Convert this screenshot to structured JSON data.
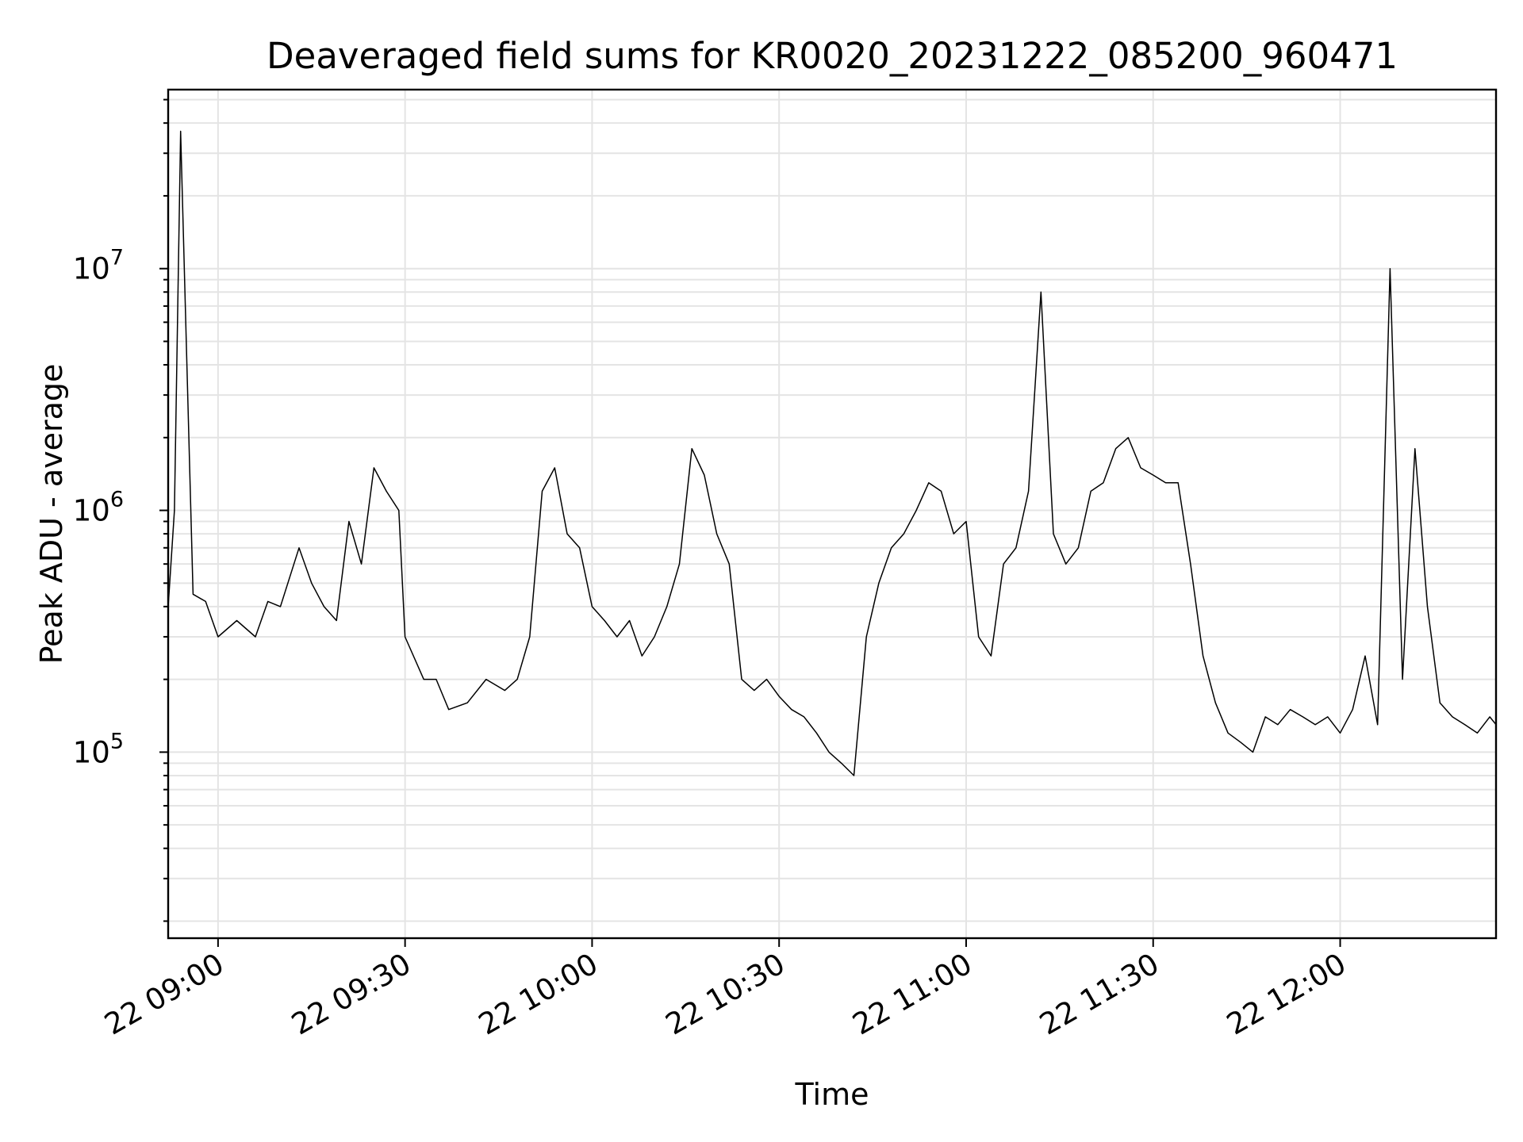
{
  "chart_data": {
    "type": "line",
    "title": "Deaveraged field sums for KR0020_20231222_085200_960471",
    "xlabel": "Time",
    "ylabel": "Peak ADU - average",
    "x_range": [
      "2023-12-22T08:52:00",
      "2023-12-22T12:25:00"
    ],
    "y_range": [
      17000,
      55000000
    ],
    "y_scale": "log",
    "grid": true,
    "line_color": "#000000",
    "x_ticks": [
      {
        "label": "22 09:00",
        "value": "2023-12-22T09:00:00"
      },
      {
        "label": "22 09:30",
        "value": "2023-12-22T09:30:00"
      },
      {
        "label": "22 10:00",
        "value": "2023-12-22T10:00:00"
      },
      {
        "label": "22 10:30",
        "value": "2023-12-22T10:30:00"
      },
      {
        "label": "22 11:00",
        "value": "2023-12-22T11:00:00"
      },
      {
        "label": "22 11:30",
        "value": "2023-12-22T11:30:00"
      },
      {
        "label": "22 12:00",
        "value": "2023-12-22T12:00:00"
      }
    ],
    "y_ticks": [
      {
        "base": "10",
        "exp": "5",
        "value": 100000
      },
      {
        "base": "10",
        "exp": "6",
        "value": 1000000
      },
      {
        "base": "10",
        "exp": "7",
        "value": 10000000
      }
    ],
    "series": [
      {
        "x": [
          "2023-12-22T08:52:00",
          "2023-12-22T08:53:00",
          "2023-12-22T08:54:00",
          "2023-12-22T08:56:00",
          "2023-12-22T08:58:00",
          "2023-12-22T09:00:00",
          "2023-12-22T09:03:00",
          "2023-12-22T09:06:00",
          "2023-12-22T09:08:00",
          "2023-12-22T09:10:00",
          "2023-12-22T09:13:00",
          "2023-12-22T09:15:00",
          "2023-12-22T09:17:00",
          "2023-12-22T09:19:00",
          "2023-12-22T09:21:00",
          "2023-12-22T09:23:00",
          "2023-12-22T09:25:00",
          "2023-12-22T09:27:00",
          "2023-12-22T09:29:00",
          "2023-12-22T09:30:00",
          "2023-12-22T09:33:00",
          "2023-12-22T09:35:00",
          "2023-12-22T09:37:00",
          "2023-12-22T09:40:00",
          "2023-12-22T09:43:00",
          "2023-12-22T09:46:00",
          "2023-12-22T09:48:00",
          "2023-12-22T09:50:00",
          "2023-12-22T09:52:00",
          "2023-12-22T09:54:00",
          "2023-12-22T09:56:00",
          "2023-12-22T09:58:00",
          "2023-12-22T10:00:00",
          "2023-12-22T10:02:00",
          "2023-12-22T10:04:00",
          "2023-12-22T10:06:00",
          "2023-12-22T10:08:00",
          "2023-12-22T10:10:00",
          "2023-12-22T10:12:00",
          "2023-12-22T10:14:00",
          "2023-12-22T10:16:00",
          "2023-12-22T10:18:00",
          "2023-12-22T10:20:00",
          "2023-12-22T10:22:00",
          "2023-12-22T10:24:00",
          "2023-12-22T10:26:00",
          "2023-12-22T10:28:00",
          "2023-12-22T10:30:00",
          "2023-12-22T10:32:00",
          "2023-12-22T10:34:00",
          "2023-12-22T10:36:00",
          "2023-12-22T10:38:00",
          "2023-12-22T10:40:00",
          "2023-12-22T10:42:00",
          "2023-12-22T10:44:00",
          "2023-12-22T10:46:00",
          "2023-12-22T10:48:00",
          "2023-12-22T10:50:00",
          "2023-12-22T10:52:00",
          "2023-12-22T10:54:00",
          "2023-12-22T10:56:00",
          "2023-12-22T10:58:00",
          "2023-12-22T11:00:00",
          "2023-12-22T11:02:00",
          "2023-12-22T11:04:00",
          "2023-12-22T11:06:00",
          "2023-12-22T11:08:00",
          "2023-12-22T11:10:00",
          "2023-12-22T11:12:00",
          "2023-12-22T11:14:00",
          "2023-12-22T11:16:00",
          "2023-12-22T11:18:00",
          "2023-12-22T11:20:00",
          "2023-12-22T11:22:00",
          "2023-12-22T11:24:00",
          "2023-12-22T11:26:00",
          "2023-12-22T11:28:00",
          "2023-12-22T11:30:00",
          "2023-12-22T11:32:00",
          "2023-12-22T11:34:00",
          "2023-12-22T11:36:00",
          "2023-12-22T11:38:00",
          "2023-12-22T11:40:00",
          "2023-12-22T11:42:00",
          "2023-12-22T11:44:00",
          "2023-12-22T11:46:00",
          "2023-12-22T11:48:00",
          "2023-12-22T11:50:00",
          "2023-12-22T11:52:00",
          "2023-12-22T11:54:00",
          "2023-12-22T11:56:00",
          "2023-12-22T11:58:00",
          "2023-12-22T12:00:00",
          "2023-12-22T12:02:00",
          "2023-12-22T12:04:00",
          "2023-12-22T12:06:00",
          "2023-12-22T12:08:00",
          "2023-12-22T12:10:00",
          "2023-12-22T12:12:00",
          "2023-12-22T12:14:00",
          "2023-12-22T12:16:00",
          "2023-12-22T12:18:00",
          "2023-12-22T12:20:00",
          "2023-12-22T12:22:00",
          "2023-12-22T12:24:00",
          "2023-12-22T12:25:00"
        ],
        "values": [
          400000,
          1000000,
          37000000,
          450000,
          420000,
          300000,
          350000,
          300000,
          420000,
          400000,
          700000,
          500000,
          400000,
          350000,
          900000,
          600000,
          1500000,
          1200000,
          1000000,
          300000,
          200000,
          200000,
          150000,
          160000,
          200000,
          180000,
          200000,
          300000,
          1200000,
          1500000,
          800000,
          700000,
          400000,
          350000,
          300000,
          350000,
          250000,
          300000,
          400000,
          600000,
          1800000,
          1400000,
          800000,
          600000,
          200000,
          180000,
          200000,
          170000,
          150000,
          140000,
          120000,
          100000,
          90000,
          80000,
          300000,
          500000,
          700000,
          800000,
          1000000,
          1300000,
          1200000,
          800000,
          900000,
          300000,
          250000,
          600000,
          700000,
          1200000,
          8000000,
          800000,
          600000,
          700000,
          1200000,
          1300000,
          1800000,
          2000000,
          1500000,
          1400000,
          1300000,
          1300000,
          600000,
          250000,
          160000,
          120000,
          110000,
          100000,
          140000,
          130000,
          150000,
          140000,
          130000,
          140000,
          120000,
          150000,
          250000,
          130000,
          10000000,
          200000,
          1800000,
          400000,
          160000,
          140000,
          130000,
          120000,
          140000,
          130000
        ],
        "step_minutes": 2
      }
    ]
  }
}
